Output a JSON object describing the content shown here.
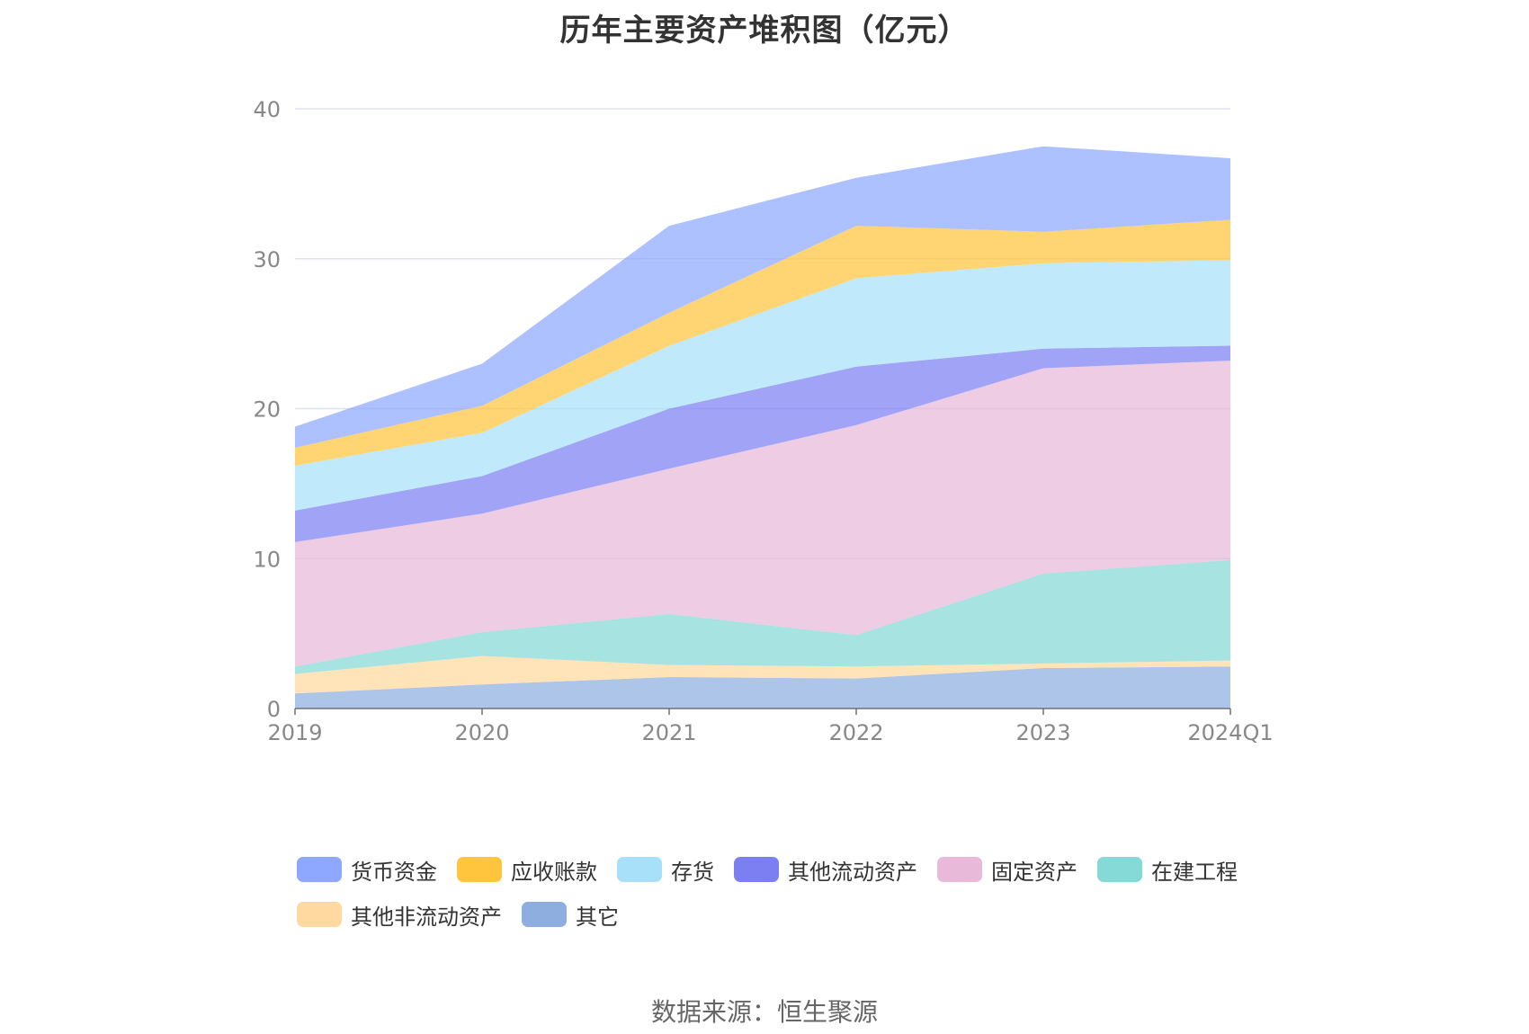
{
  "title": "历年主要资产堆积图（亿元）",
  "source": "数据来源：恒生聚源",
  "colors": {
    "货币资金": "#8ea7ff",
    "应收账款": "#ffc53d",
    "存货": "#a8e0fa",
    "其他流动资产": "#7b7ff2",
    "固定资产": "#e8b9d8",
    "在建工程": "#85d9d6",
    "其他非流动资产": "#ffd9a0",
    "其它": "#8eaedf"
  },
  "chart_data": {
    "type": "area",
    "stacked": true,
    "title": "历年主要资产堆积图（亿元）",
    "xlabel": "",
    "ylabel": "",
    "x": [
      "2019",
      "2020",
      "2021",
      "2022",
      "2023",
      "2024Q1"
    ],
    "ylim": [
      0,
      40
    ],
    "yticks": [
      0,
      10,
      20,
      30,
      40
    ],
    "grid": true,
    "legend_position": "bottom",
    "series": [
      {
        "name": "其它",
        "values": [
          1.0,
          1.6,
          2.1,
          2.0,
          2.7,
          2.8
        ]
      },
      {
        "name": "其他非流动资产",
        "values": [
          1.3,
          1.9,
          0.8,
          0.8,
          0.3,
          0.4
        ]
      },
      {
        "name": "在建工程",
        "values": [
          0.5,
          1.6,
          3.4,
          2.1,
          6.0,
          6.7
        ]
      },
      {
        "name": "固定资产",
        "values": [
          8.3,
          7.9,
          9.7,
          14.0,
          13.7,
          13.3
        ]
      },
      {
        "name": "其他流动资产",
        "values": [
          2.1,
          2.5,
          4.0,
          3.9,
          1.3,
          1.0
        ]
      },
      {
        "name": "存货",
        "values": [
          3.0,
          2.9,
          4.2,
          5.9,
          5.7,
          5.7
        ]
      },
      {
        "name": "应收账款",
        "values": [
          1.2,
          1.8,
          2.2,
          3.5,
          2.1,
          2.7
        ]
      },
      {
        "name": "货币资金",
        "values": [
          1.4,
          2.8,
          5.8,
          3.2,
          5.7,
          4.1
        ]
      }
    ]
  },
  "legend": [
    {
      "label": "货币资金",
      "color": "#8ea7ff"
    },
    {
      "label": "应收账款",
      "color": "#ffc53d"
    },
    {
      "label": "存货",
      "color": "#a8e0fa"
    },
    {
      "label": "其他流动资产",
      "color": "#7b7ff2"
    },
    {
      "label": "固定资产",
      "color": "#e8b9d8"
    },
    {
      "label": "在建工程",
      "color": "#85d9d6"
    },
    {
      "label": "其他非流动资产",
      "color": "#ffd9a0"
    },
    {
      "label": "其它",
      "color": "#8eaedf"
    }
  ]
}
